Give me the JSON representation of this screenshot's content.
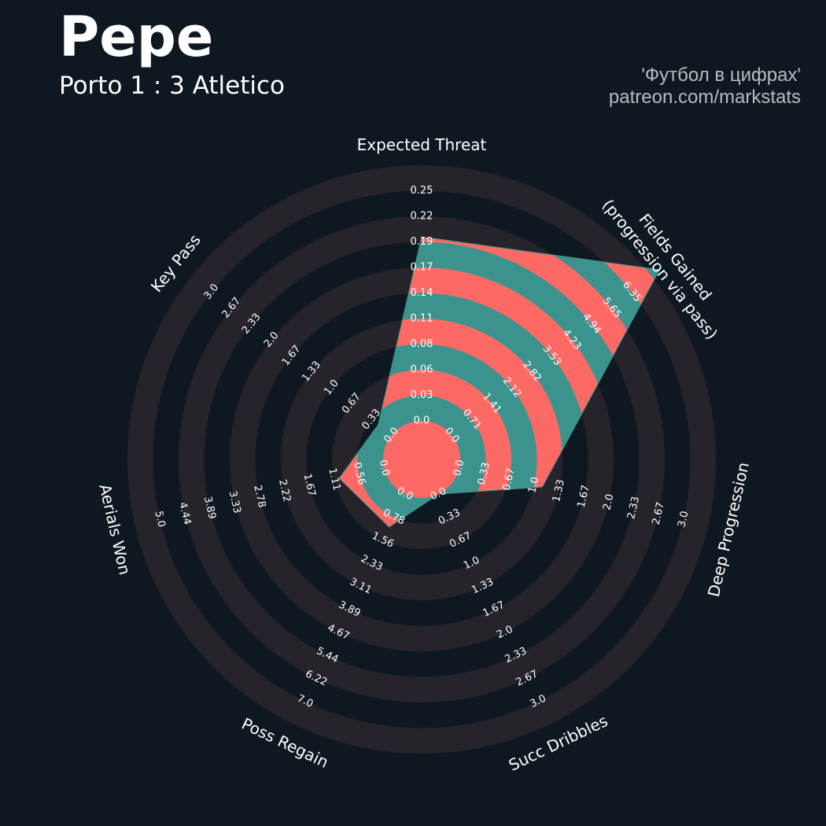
{
  "header": {
    "title": "Pepe",
    "subtitle": "Porto 1 : 3 Atletico",
    "credit_line1": "'Футбол в цифрах'",
    "credit_line2": "patreon.com/markstats"
  },
  "colors": {
    "background": "#0e1820",
    "ring_band": "#27232a",
    "polygon_teal": "#3c938d",
    "polygon_coral": "#fd6a66",
    "text": "#ffffff"
  },
  "chart_data": {
    "type": "radar",
    "title": "Pepe",
    "subtitle": "Porto 1 : 3 Atletico",
    "params": [
      "Expected Threat",
      "Fields Gained\n(progression via pass)",
      "Deep Progression",
      "Succ Dribbles",
      "Poss Regain",
      "Aerials Won",
      "Key Pass"
    ],
    "values": [
      0.18,
      6.6,
      1.0,
      0.0,
      1.0,
      0.9,
      0.2
    ],
    "ranges": [
      [
        0.0,
        0.25
      ],
      [
        0.0,
        6.35
      ],
      [
        0.0,
        3.0
      ],
      [
        0.0,
        3.0
      ],
      [
        0.0,
        7.0
      ],
      [
        0.0,
        5.0
      ],
      [
        0.0,
        3.0
      ]
    ],
    "tick_labels": [
      [
        "0.0",
        "0.03",
        "0.06",
        "0.08",
        "0.11",
        "0.14",
        "0.17",
        "0.19",
        "0.22",
        "0.25"
      ],
      [
        "0.0",
        "0.71",
        "1.41",
        "2.12",
        "2.82",
        "3.53",
        "4.23",
        "4.94",
        "5.65",
        "6.35"
      ],
      [
        "0.0",
        "0.33",
        "0.67",
        "1.0",
        "1.33",
        "1.67",
        "2.0",
        "2.33",
        "2.67",
        "3.0"
      ],
      [
        "0.0",
        "0.33",
        "0.67",
        "1.0",
        "1.33",
        "1.67",
        "2.0",
        "2.33",
        "2.67",
        "3.0"
      ],
      [
        "0.0",
        "0.78",
        "1.56",
        "2.33",
        "3.11",
        "3.89",
        "4.67",
        "5.44",
        "6.22",
        "7.0"
      ],
      [
        "0.0",
        "0.56",
        "1.11",
        "1.67",
        "2.22",
        "2.78",
        "3.33",
        "3.89",
        "4.44",
        "5.0"
      ],
      [
        "0.0",
        "0.33",
        "0.67",
        "1.0",
        "1.33",
        "1.67",
        "2.0",
        "2.33",
        "2.67",
        "3.0"
      ]
    ]
  }
}
